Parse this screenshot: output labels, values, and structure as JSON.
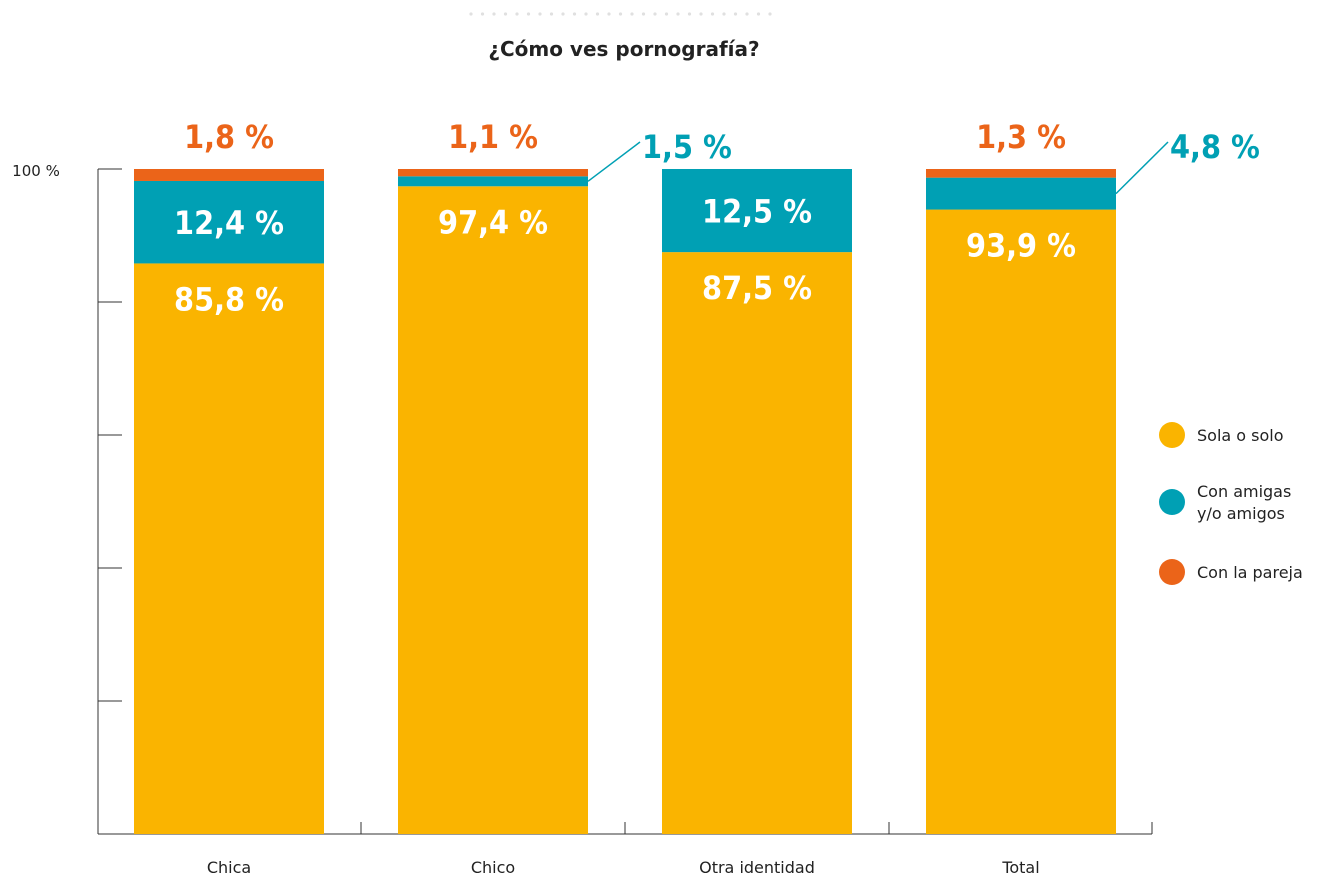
{
  "chart_data": {
    "type": "bar",
    "stacked": true,
    "title": "¿Cómo ves pornografía?",
    "categories": [
      "Chica",
      "Chico",
      "Otra identidad",
      "Total"
    ],
    "series": [
      {
        "name": "Sola o solo",
        "color": "#FAB400",
        "values": [
          85.8,
          97.4,
          87.5,
          93.9
        ]
      },
      {
        "name": "Con amigas y/o amigos",
        "legend_lines": [
          "Con amigas",
          "y/o amigos"
        ],
        "color": "#00A0B4",
        "values": [
          12.4,
          1.5,
          12.5,
          4.8
        ]
      },
      {
        "name": "Con la pareja",
        "color": "#EB6419",
        "values": [
          1.8,
          1.1,
          0,
          1.3
        ]
      }
    ],
    "data_labels": [
      {
        "category": "Chica",
        "series": "Sola o solo",
        "text": "85,8 %"
      },
      {
        "category": "Chica",
        "series": "Con amigas y/o amigos",
        "text": "12,4 %"
      },
      {
        "category": "Chica",
        "series": "Con la pareja",
        "text": "1,8 %"
      },
      {
        "category": "Chico",
        "series": "Sola o solo",
        "text": "97,4 %"
      },
      {
        "category": "Chico",
        "series": "Con amigas y/o amigos",
        "text": "1,5 %"
      },
      {
        "category": "Chico",
        "series": "Con la pareja",
        "text": "1,1 %"
      },
      {
        "category": "Otra identidad",
        "series": "Sola o solo",
        "text": "87,5 %"
      },
      {
        "category": "Otra identidad",
        "series": "Con amigas y/o amigos",
        "text": "12,5 %"
      },
      {
        "category": "Total",
        "series": "Sola o solo",
        "text": "93,9 %"
      },
      {
        "category": "Total",
        "series": "Con amigas y/o amigos",
        "text": "4,8 %"
      },
      {
        "category": "Total",
        "series": "Con la pareja",
        "text": "1,3 %"
      }
    ],
    "y_axis": {
      "max_label": "100 %",
      "range": [
        0,
        100
      ]
    },
    "grid": false,
    "legend_position": "right"
  }
}
